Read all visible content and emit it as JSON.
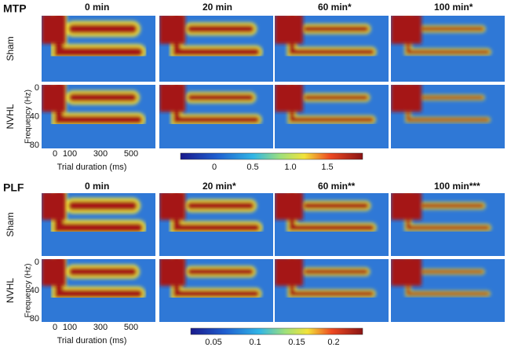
{
  "panels": [
    {
      "label": "MTP",
      "columns": [
        "0 min",
        "20 min",
        "60 min*",
        "100 min*"
      ],
      "rows": [
        "Sham",
        "NVHL"
      ],
      "y_axis": {
        "label": "Frequency (Hz)",
        "ticks": [
          "0",
          "40",
          "80"
        ]
      },
      "x_axis": {
        "label": "Trial duration (ms)",
        "ticks": [
          "0",
          "100",
          "300",
          "500"
        ]
      },
      "colorbar": {
        "ticks": [
          "0",
          "0.5",
          "1.0",
          "1.5"
        ]
      }
    },
    {
      "label": "PLF",
      "columns": [
        "0 min",
        "20 min*",
        "60 min**",
        "100 min***"
      ],
      "rows": [
        "Sham",
        "NVHL"
      ],
      "y_axis": {
        "label": "Frequency (Hz)",
        "ticks": [
          "0",
          "40",
          "80"
        ]
      },
      "x_axis": {
        "label": "Trial duration (ms)",
        "ticks": [
          "0",
          "100",
          "300",
          "500"
        ]
      },
      "colorbar": {
        "ticks": [
          "0.05",
          "0.1",
          "0.15",
          "0.2"
        ]
      }
    }
  ]
}
